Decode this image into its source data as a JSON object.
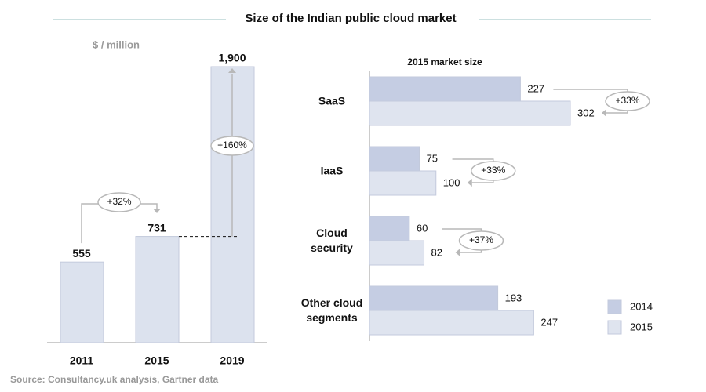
{
  "title": "Size of the Indian public cloud market",
  "source": "Source: Consultancy.uk analysis, Gartner data",
  "chart_data": [
    {
      "type": "bar",
      "axis_label": "$ / million",
      "categories": [
        "2011",
        "2015",
        "2019"
      ],
      "values": [
        555,
        731,
        1900
      ],
      "value_labels": [
        "555",
        "731",
        "1,900"
      ],
      "color": "#dce2ee",
      "annotations": [
        "+32%",
        "+160%"
      ]
    },
    {
      "type": "hbar",
      "title": "2015 market size",
      "categories": [
        "SaaS",
        "IaaS",
        "Cloud security",
        "Other cloud segments"
      ],
      "series": [
        {
          "name": "2014",
          "color": "#c5cde3",
          "values": [
            227,
            75,
            60,
            193
          ]
        },
        {
          "name": "2015",
          "color": "#dfe4ef",
          "values": [
            302,
            100,
            82,
            247
          ]
        }
      ],
      "annotations": [
        "+33%",
        "+33%",
        "+37%"
      ],
      "legend": "bottom-right"
    }
  ]
}
